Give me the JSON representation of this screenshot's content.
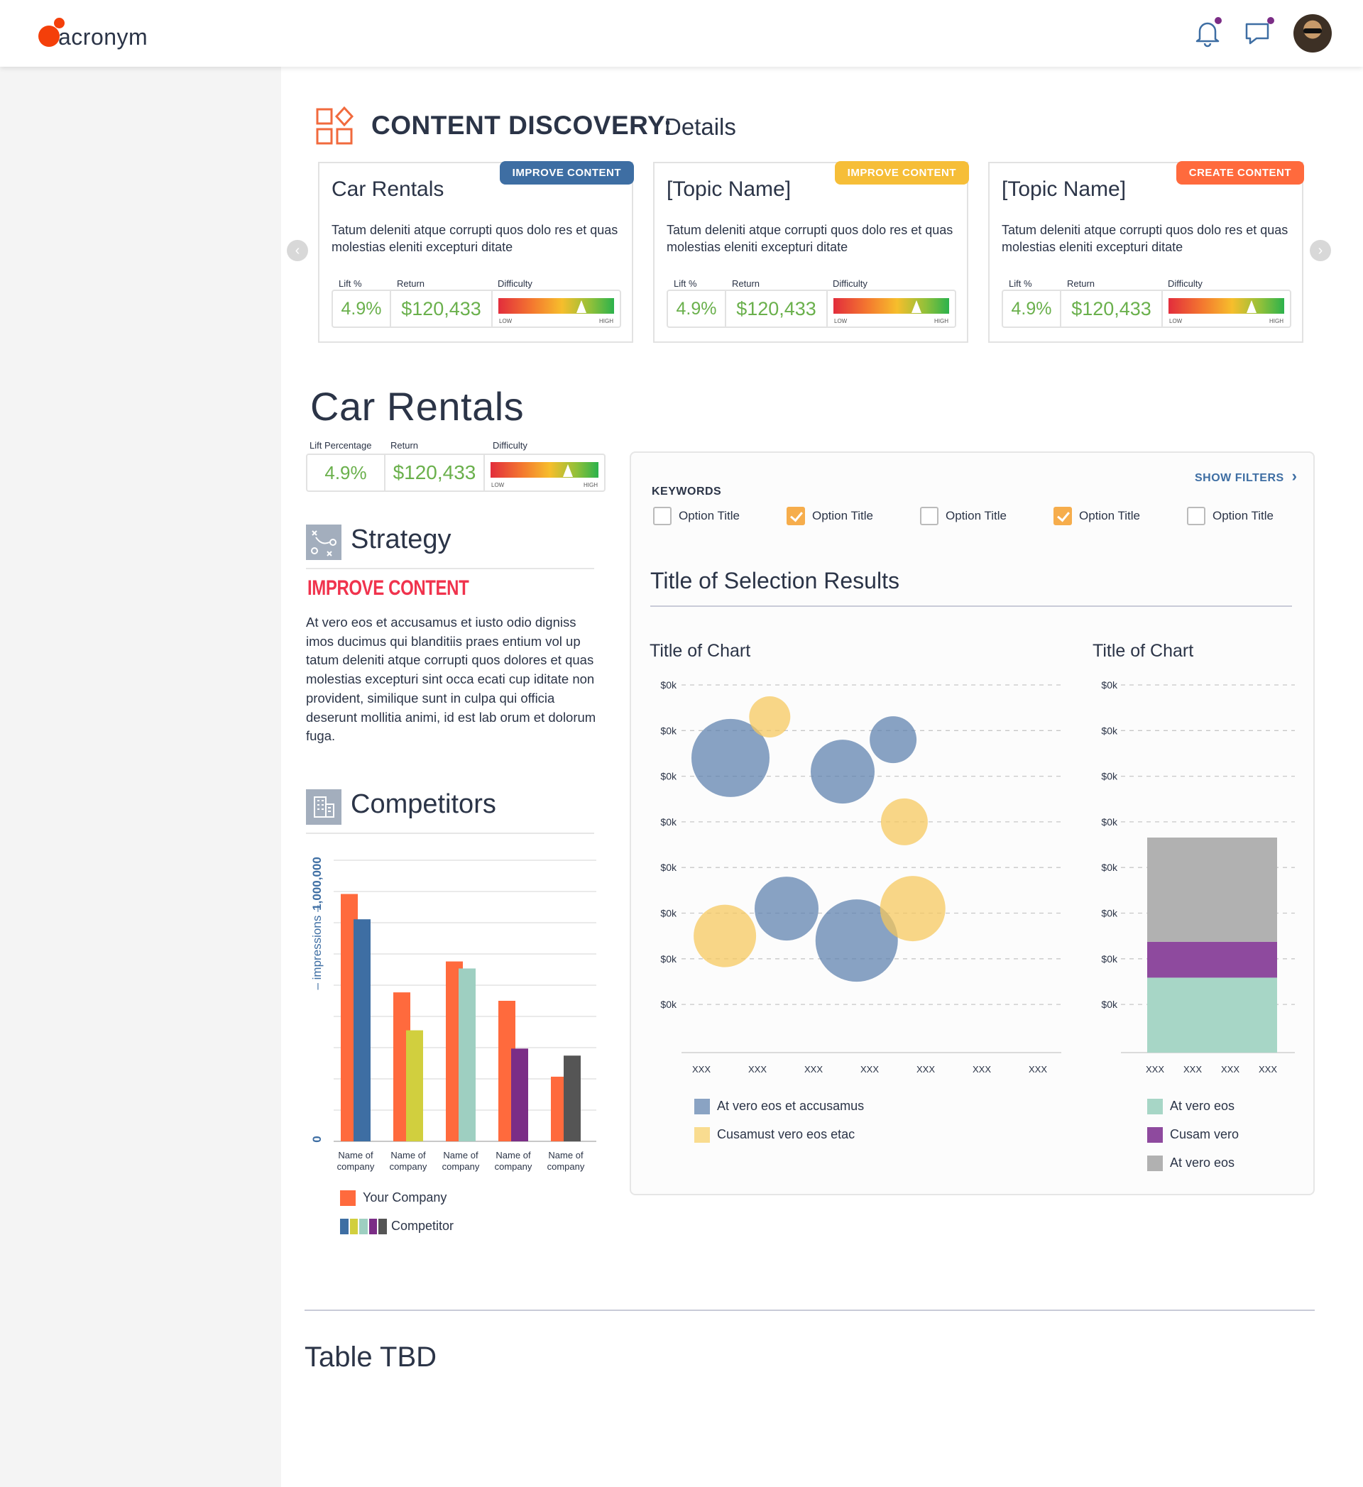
{
  "app": {
    "logo_text": "acronym"
  },
  "header": {
    "title": "CONTENT DISCOVERY:",
    "subtitle": "Details"
  },
  "cards": [
    {
      "title": "Car Rentals",
      "badge": "IMPROVE CONTENT",
      "badge_color": "#3e6ea3",
      "desc": "Tatum deleniti atque corrupti quos dolo res et quas molestias eleniti excepturi ditate",
      "lift_label": "Lift %",
      "return_label": "Return",
      "difficulty_label": "Difficulty",
      "lift": "4.9%",
      "return": "$120,433",
      "low": "LOW",
      "high": "HIGH",
      "difficulty": 0.72
    },
    {
      "title": "[Topic Name]",
      "badge": "IMPROVE CONTENT",
      "badge_color": "#f6be38",
      "desc": "Tatum deleniti atque corrupti quos dolo res et quas molestias eleniti excepturi ditate",
      "lift_label": "Lift %",
      "return_label": "Return",
      "difficulty_label": "Difficulty",
      "lift": "4.9%",
      "return": "$120,433",
      "low": "LOW",
      "high": "HIGH",
      "difficulty": 0.72
    },
    {
      "title": "[Topic Name]",
      "badge": "CREATE CONTENT",
      "badge_color": "#ff6a3d",
      "desc": "Tatum deleniti atque corrupti quos dolo res et quas molestias eleniti excepturi ditate",
      "lift_label": "Lift %",
      "return_label": "Return",
      "difficulty_label": "Difficulty",
      "lift": "4.9%",
      "return": "$120,433",
      "low": "LOW",
      "high": "HIGH",
      "difficulty": 0.72
    }
  ],
  "detail": {
    "title": "Car Rentals",
    "lift_label": "Lift Percentage",
    "return_label": "Return",
    "difficulty_label": "Difficulty",
    "lift": "4.9%",
    "return": "$120,433",
    "low": "LOW",
    "high": "HIGH",
    "difficulty": 0.72
  },
  "strategy": {
    "title": "Strategy",
    "tag": "IMPROVE CONTENT",
    "body": "At vero eos et accusamus et iusto odio digniss imos ducimus qui blanditiis praes entium vol up tatum deleniti atque corrupti quos dolores et quas molestias excepturi sint occa ecati cup iditate non provident, similique sunt in culpa qui officia deserunt mollitia animi, id est lab orum et dolorum fuga."
  },
  "competitors": {
    "title": "Competitors",
    "legend": [
      {
        "label": "Your Company"
      },
      {
        "label": "Competitor"
      }
    ]
  },
  "panel": {
    "show_filters": "SHOW FILTERS",
    "keywords_label": "KEYWORDS",
    "options": [
      {
        "label": "Option Title",
        "checked": false
      },
      {
        "label": "Option Title",
        "checked": true
      },
      {
        "label": "Option Title",
        "checked": false
      },
      {
        "label": "Option Title",
        "checked": true
      },
      {
        "label": "Option Title",
        "checked": false
      }
    ],
    "results_title": "Title of Selection Results"
  },
  "chart_data": [
    {
      "type": "bar",
      "title": "",
      "ylabel": "– impressions –",
      "y_ticks": [
        "0",
        "1,000,000"
      ],
      "ylim": [
        0,
        1000000
      ],
      "categories": [
        "Name of company",
        "Name of company",
        "Name of company",
        "Name of company",
        "Name of company"
      ],
      "series": [
        {
          "name": "Your Company",
          "color": "#ff6a3d",
          "values": [
            880000,
            530000,
            640000,
            500000,
            230000
          ]
        },
        {
          "name": "Competitor",
          "colors": [
            "#3e6ea3",
            "#d1cf3e",
            "#9ecfc1",
            "#7b2d86",
            "#555555"
          ],
          "values": [
            790000,
            395000,
            615000,
            330000,
            305000
          ]
        }
      ]
    },
    {
      "type": "scatter",
      "title": "Title of Chart",
      "y_ticks": [
        "$0k",
        "$0k",
        "$0k",
        "$0k",
        "$0k",
        "$0k",
        "$0k",
        "$0k"
      ],
      "x_ticks": [
        "XXX",
        "XXX",
        "XXX",
        "XXX",
        "XXX",
        "XXX",
        "XXX"
      ],
      "grid": true,
      "series": [
        {
          "name": "At vero eos et accusamus",
          "color": "#5b80ad",
          "points": [
            [
              1.0,
              6.4,
              55
            ],
            [
              2.0,
              3.1,
              45
            ],
            [
              3.0,
              6.1,
              45
            ],
            [
              3.9,
              6.8,
              33
            ],
            [
              3.25,
              2.4,
              58
            ]
          ]
        },
        {
          "name": "Cusamust vero eos etac",
          "color": "#f6c85a",
          "points": [
            [
              1.7,
              7.3,
              29
            ],
            [
              0.9,
              2.5,
              44
            ],
            [
              4.1,
              5.0,
              33
            ],
            [
              4.25,
              3.1,
              46
            ]
          ]
        }
      ]
    },
    {
      "type": "bar",
      "title": "Title of Chart",
      "stacked": true,
      "y_ticks": [
        "$0k",
        "$0k",
        "$0k",
        "$0k",
        "$0k",
        "$0k",
        "$0k",
        "$0k"
      ],
      "x_ticks": [
        "XXX",
        "XXX",
        "XXX",
        "XXX"
      ],
      "grid": true,
      "series": [
        {
          "name": "At vero eos",
          "color": "#a7d6c6",
          "value": 2.3
        },
        {
          "name": "Cusam vero",
          "color": "#8e4a9e",
          "value": 1.1
        },
        {
          "name": "At vero eos",
          "color": "#b1b1b1",
          "value": 3.2
        }
      ]
    }
  ],
  "table": {
    "title": "Table TBD"
  }
}
